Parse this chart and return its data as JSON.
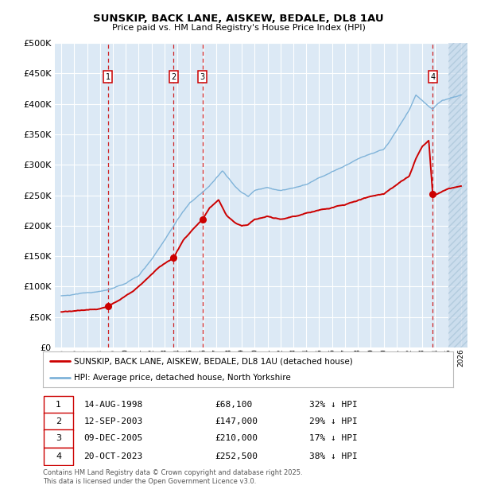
{
  "title": "SUNSKIP, BACK LANE, AISKEW, BEDALE, DL8 1AU",
  "subtitle": "Price paid vs. HM Land Registry's House Price Index (HPI)",
  "legend_line1": "SUNSKIP, BACK LANE, AISKEW, BEDALE, DL8 1AU (detached house)",
  "legend_line2": "HPI: Average price, detached house, North Yorkshire",
  "footer": "Contains HM Land Registry data © Crown copyright and database right 2025.\nThis data is licensed under the Open Government Licence v3.0.",
  "transactions": [
    {
      "num": 1,
      "date": "14-AUG-1998",
      "price": 68100,
      "pct": "32%",
      "dir": "↓",
      "year": 1998.62
    },
    {
      "num": 2,
      "date": "12-SEP-2003",
      "price": 147000,
      "pct": "29%",
      "dir": "↓",
      "year": 2003.7
    },
    {
      "num": 3,
      "date": "09-DEC-2005",
      "price": 210000,
      "pct": "17%",
      "dir": "↓",
      "year": 2005.94
    },
    {
      "num": 4,
      "date": "20-OCT-2023",
      "price": 252500,
      "pct": "38%",
      "dir": "↓",
      "year": 2023.8
    }
  ],
  "ylim": [
    0,
    500000
  ],
  "xlim_start": 1994.5,
  "xlim_end": 2026.5,
  "bg_color": "#dce9f5",
  "grid_color": "#ffffff",
  "hpi_color": "#7fb3d9",
  "price_color": "#cc0000",
  "dashed_color": "#cc0000",
  "hatch_start": 2025.0,
  "figsize": [
    6.0,
    6.2
  ],
  "dpi": 100
}
